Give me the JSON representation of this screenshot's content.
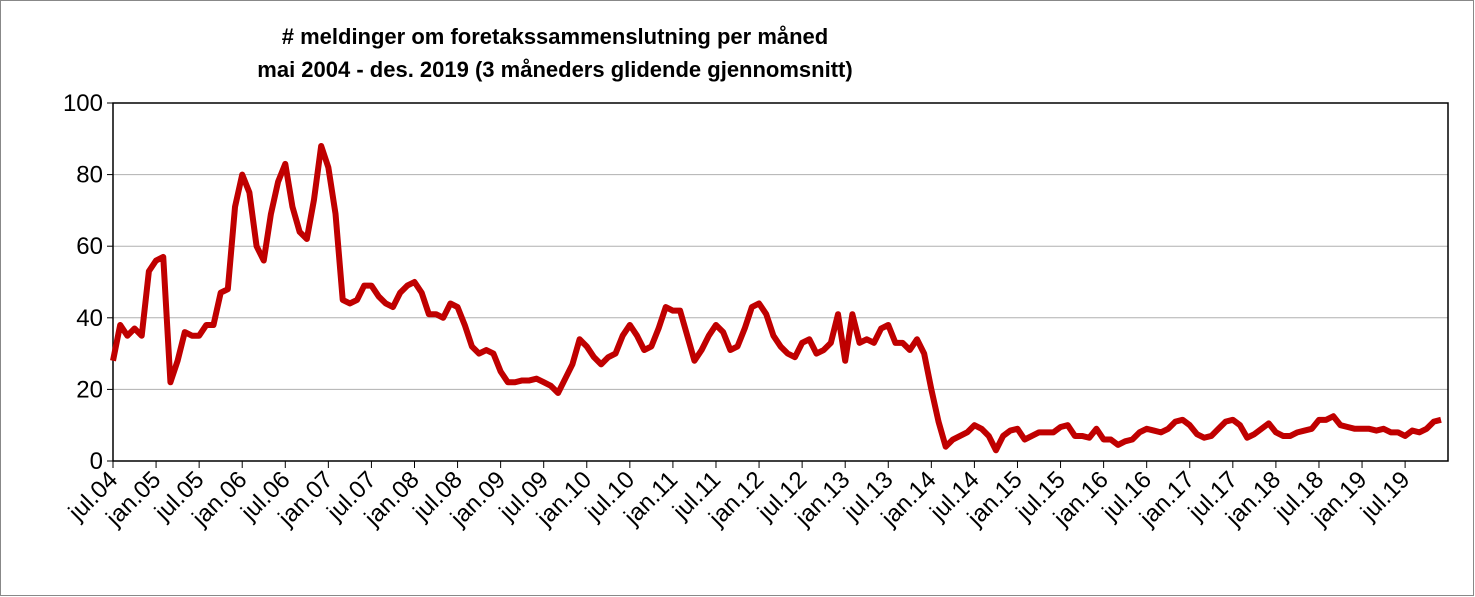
{
  "chart_data": {
    "type": "line",
    "title": "# meldinger om foretakssammenslutning per måned",
    "subtitle": "mai 2004 - des. 2019 (3 måneders glidende gjennomsnitt)",
    "categories": [
      "jul.04",
      null,
      null,
      null,
      null,
      null,
      "jan.05",
      null,
      null,
      null,
      null,
      null,
      "jul.05",
      null,
      null,
      null,
      null,
      null,
      "jan.06",
      null,
      null,
      null,
      null,
      null,
      "jul.06",
      null,
      null,
      null,
      null,
      null,
      "jan.07",
      null,
      null,
      null,
      null,
      null,
      "jul.07",
      null,
      null,
      null,
      null,
      null,
      "jan.08",
      null,
      null,
      null,
      null,
      null,
      "jul.08",
      null,
      null,
      null,
      null,
      null,
      "jan.09",
      null,
      null,
      null,
      null,
      null,
      "jul.09",
      null,
      null,
      null,
      null,
      null,
      "jan.10",
      null,
      null,
      null,
      null,
      null,
      "jul.10",
      null,
      null,
      null,
      null,
      null,
      "jan.11",
      null,
      null,
      null,
      null,
      null,
      "jul.11",
      null,
      null,
      null,
      null,
      null,
      "jan.12",
      null,
      null,
      null,
      null,
      null,
      "jul.12",
      null,
      null,
      null,
      null,
      null,
      "jan.13",
      null,
      null,
      null,
      null,
      null,
      "jul.13",
      null,
      null,
      null,
      null,
      null,
      "jan.14",
      null,
      null,
      null,
      null,
      null,
      "jul.14",
      null,
      null,
      null,
      null,
      null,
      "jan.15",
      null,
      null,
      null,
      null,
      null,
      "jul.15",
      null,
      null,
      null,
      null,
      null,
      "jan.16",
      null,
      null,
      null,
      null,
      null,
      "jul.16",
      null,
      null,
      null,
      null,
      null,
      "jan.17",
      null,
      null,
      null,
      null,
      null,
      "jul.17",
      null,
      null,
      null,
      null,
      null,
      "jan.18",
      null,
      null,
      null,
      null,
      null,
      "jul.18",
      null,
      null,
      null,
      null,
      null,
      "jan.19",
      null,
      null,
      null,
      null,
      null,
      "jul.19",
      null,
      null,
      null,
      null,
      null
    ],
    "values": [
      28,
      38,
      35,
      37,
      35,
      53,
      56,
      57,
      22,
      28,
      36,
      35,
      35,
      38,
      38,
      47,
      48,
      71,
      80,
      75,
      60,
      56,
      69,
      78,
      83,
      71,
      64,
      62,
      73,
      88,
      82,
      69,
      45,
      44,
      45,
      49,
      49,
      46,
      44,
      43,
      47,
      49,
      50,
      47,
      41,
      41,
      40,
      44,
      43,
      38,
      32,
      30,
      31,
      30,
      25,
      22,
      22,
      22.5,
      22.5,
      23,
      22,
      21,
      19,
      23,
      27,
      34,
      32,
      29,
      27,
      29,
      30,
      35,
      38,
      35,
      31,
      32,
      37,
      43,
      42,
      42,
      35,
      28,
      31,
      35,
      38,
      36,
      31,
      32,
      37,
      43,
      44,
      41,
      35,
      32,
      30,
      29,
      33,
      34,
      30,
      31,
      33,
      41,
      28,
      41,
      33,
      34,
      33,
      37,
      38,
      33,
      33,
      31,
      34,
      30,
      20,
      11,
      4,
      6,
      7,
      8,
      10,
      9,
      7,
      3,
      7,
      8.5,
      9,
      6,
      7,
      8,
      8,
      8,
      9.5,
      10,
      7,
      7,
      6.5,
      9,
      6,
      6,
      4.5,
      5.5,
      6,
      8,
      9,
      8.5,
      8,
      9,
      11,
      11.5,
      10,
      7.5,
      6.5,
      7,
      9,
      11,
      11.5,
      10,
      6.5,
      7.5,
      9,
      10.5,
      8,
      7,
      7,
      8,
      8.5,
      9,
      11.5,
      11.5,
      12.5,
      10,
      9.5,
      9,
      9,
      9,
      8.5,
      9,
      8,
      8,
      7,
      8.5,
      8,
      9,
      11,
      11.5
    ],
    "color": "#c00000",
    "ylim": [
      0,
      100
    ],
    "yticks": [
      0,
      20,
      40,
      60,
      80,
      100
    ],
    "grid": true
  }
}
